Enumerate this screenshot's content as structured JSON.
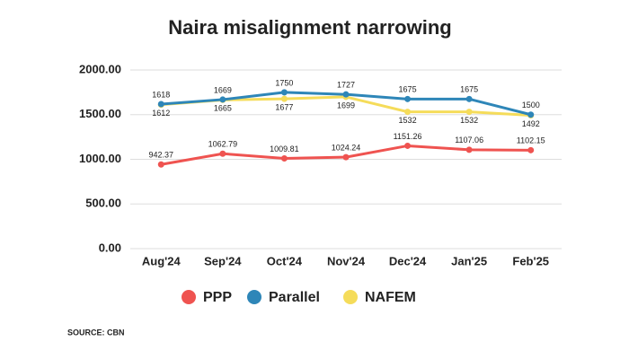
{
  "chart_data": {
    "type": "line",
    "title": "Naira misalignment narrowing",
    "categories": [
      "Aug'24",
      "Sep'24",
      "Oct'24",
      "Nov'24",
      "Dec'24",
      "Jan'25",
      "Feb'25"
    ],
    "series": [
      {
        "name": "PPP",
        "color": "#ef5350",
        "values": [
          942.37,
          1062.79,
          1009.81,
          1024.24,
          1151.26,
          1107.06,
          1102.15
        ]
      },
      {
        "name": "Parallel",
        "color": "#2e86b8",
        "values": [
          1618,
          1669,
          1750,
          1727,
          1675,
          1675,
          1500
        ]
      },
      {
        "name": "NAFEM",
        "color": "#f5dc5a",
        "values": [
          1612,
          1665,
          1677,
          1699,
          1532,
          1532,
          1492
        ]
      }
    ],
    "ylim": [
      0,
      2000
    ],
    "yticks": [
      {
        "value": 0,
        "label": "0.00"
      },
      {
        "value": 500,
        "label": "500.00"
      },
      {
        "value": 1000,
        "label": "1000.00"
      },
      {
        "value": 1500,
        "label": "1500.00"
      },
      {
        "value": 2000,
        "label": "2000.00"
      }
    ],
    "grid": true,
    "source": "SOURCE: CBN"
  }
}
